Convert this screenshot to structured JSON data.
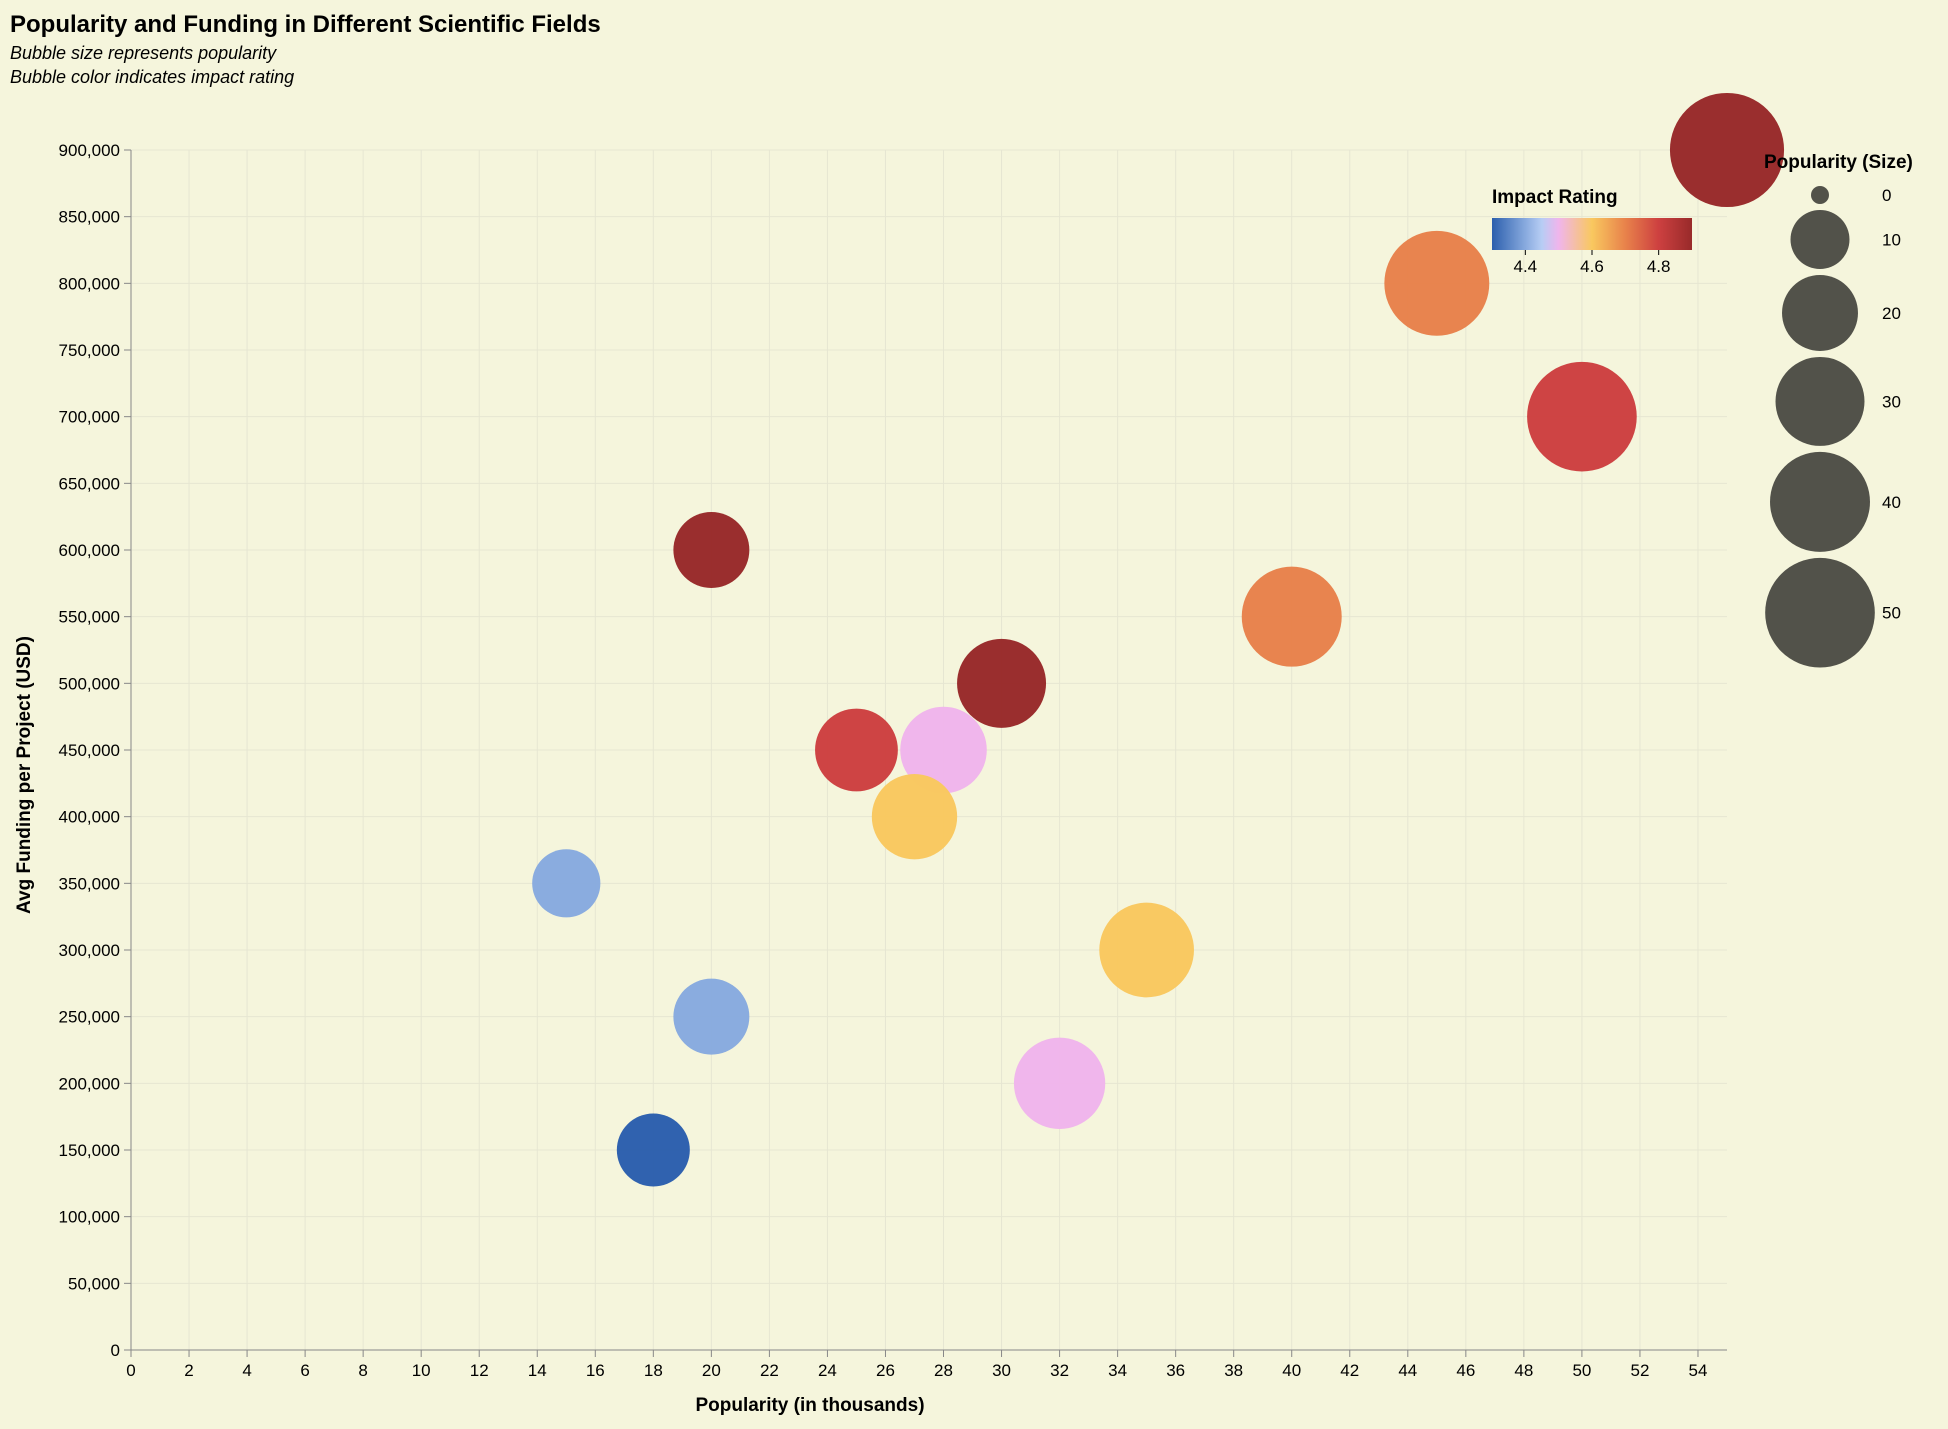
{
  "chart_data": {
    "type": "scatter",
    "title": "Popularity and Funding in Different Scientific Fields",
    "subtitle": [
      "Bubble size represents popularity",
      "Bubble color indicates impact rating"
    ],
    "xlabel": "Popularity (in thousands)",
    "ylabel": "Avg Funding per Project (USD)",
    "xlim": [
      0,
      55
    ],
    "ylim": [
      0,
      900000
    ],
    "x_ticks": [
      0,
      2,
      4,
      6,
      8,
      10,
      12,
      14,
      16,
      18,
      20,
      22,
      24,
      26,
      28,
      30,
      32,
      34,
      36,
      38,
      40,
      42,
      44,
      46,
      48,
      50,
      52,
      54
    ],
    "y_ticks": [
      0,
      50000,
      100000,
      150000,
      200000,
      250000,
      300000,
      350000,
      400000,
      450000,
      500000,
      550000,
      600000,
      650000,
      700000,
      750000,
      800000,
      850000,
      900000
    ],
    "y_tick_labels": [
      "0",
      "50,000",
      "100,000",
      "150,000",
      "200,000",
      "250,000",
      "300,000",
      "350,000",
      "400,000",
      "450,000",
      "500,000",
      "550,000",
      "600,000",
      "650,000",
      "700,000",
      "750,000",
      "800,000",
      "850,000",
      "900,000"
    ],
    "grid": true,
    "points": [
      {
        "popularity": 55,
        "funding": 900000,
        "impact": 4.9
      },
      {
        "popularity": 45,
        "funding": 800000,
        "impact": 4.7
      },
      {
        "popularity": 50,
        "funding": 700000,
        "impact": 4.8
      },
      {
        "popularity": 20,
        "funding": 600000,
        "impact": 4.9
      },
      {
        "popularity": 40,
        "funding": 550000,
        "impact": 4.7
      },
      {
        "popularity": 30,
        "funding": 500000,
        "impact": 4.9
      },
      {
        "popularity": 25,
        "funding": 450000,
        "impact": 4.8
      },
      {
        "popularity": 28,
        "funding": 450000,
        "impact": 4.5
      },
      {
        "popularity": 27,
        "funding": 400000,
        "impact": 4.6
      },
      {
        "popularity": 15,
        "funding": 350000,
        "impact": 4.4
      },
      {
        "popularity": 35,
        "funding": 300000,
        "impact": 4.6
      },
      {
        "popularity": 20,
        "funding": 250000,
        "impact": 4.4
      },
      {
        "popularity": 32,
        "funding": 200000,
        "impact": 4.5
      },
      {
        "popularity": 18,
        "funding": 150000,
        "impact": 4.3
      }
    ],
    "color_legend": {
      "title": "Impact Rating",
      "domain": [
        4.3,
        4.9
      ],
      "ticks": [
        4.4,
        4.6,
        4.8
      ],
      "tick_labels": [
        "4.4",
        "4.6",
        "4.8"
      ],
      "stops": [
        {
          "value": 4.3,
          "color": "#2c5fad"
        },
        {
          "value": 4.4,
          "color": "#88aade"
        },
        {
          "value": 4.45,
          "color": "#b7cdf4"
        },
        {
          "value": 4.5,
          "color": "#f0b5ec"
        },
        {
          "value": 4.6,
          "color": "#f9c85f"
        },
        {
          "value": 4.7,
          "color": "#e8824b"
        },
        {
          "value": 4.8,
          "color": "#cd4040"
        },
        {
          "value": 4.9,
          "color": "#982a2a"
        }
      ]
    },
    "size_legend": {
      "title": "Popularity (Size)",
      "values": [
        0,
        10,
        20,
        30,
        40,
        50
      ],
      "labels": [
        "0",
        "10",
        "20",
        "30",
        "40",
        "50"
      ],
      "color": "#52524a"
    }
  }
}
